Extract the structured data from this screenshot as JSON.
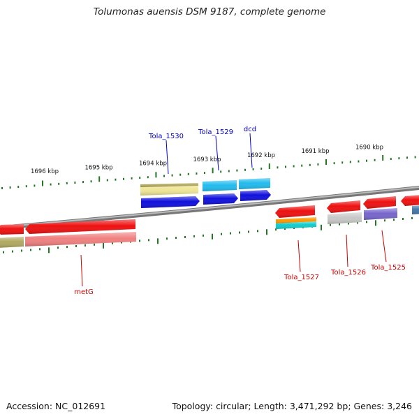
{
  "title": "Tolumonas auensis DSM 9187, complete genome",
  "footer": {
    "accession_label": "Accession:",
    "accession": "NC_012691",
    "topology_label": "Topology:",
    "topology": "circular",
    "length_label": "Length:",
    "length": "3,471,292 bp",
    "genes_label": "Genes:",
    "genes": "3,246"
  },
  "ruler": {
    "unit": "kbp",
    "ticks": [
      {
        "label": "1696 kbp",
        "kbp": 1696
      },
      {
        "label": "1695 kbp",
        "kbp": 1695
      },
      {
        "label": "1694 kbp",
        "kbp": 1694
      },
      {
        "label": "1693 kbp",
        "kbp": 1693
      },
      {
        "label": "1692 kbp",
        "kbp": 1692
      },
      {
        "label": "1691 kbp",
        "kbp": 1691
      },
      {
        "label": "1690 kbp",
        "kbp": 1690
      }
    ]
  },
  "colors": {
    "red": "#ee1111",
    "pink": "#f08080",
    "olive": "#b0a860",
    "pale_yellow": "#f0e698",
    "blue": "#1010dd",
    "sky": "#22bbee",
    "orange": "#ff9900",
    "cyan": "#11cccc",
    "gray": "#c8c8c8",
    "purple": "#7766cc",
    "steel": "#4477aa",
    "ruler": "#227722",
    "backbone": "#888888",
    "label_blue": "#0000cc",
    "label_red": "#cc0000"
  },
  "gene_labels": [
    {
      "name": "Tola_1530",
      "color": "#0000cc"
    },
    {
      "name": "Tola_1529",
      "color": "#0000cc"
    },
    {
      "name": "dcd",
      "color": "#0000cc"
    },
    {
      "name": "metG",
      "color": "#cc0000"
    },
    {
      "name": "Tola_1527",
      "color": "#cc0000"
    },
    {
      "name": "Tola_1526",
      "color": "#cc0000"
    },
    {
      "name": "Tola_1525",
      "color": "#cc0000"
    }
  ]
}
